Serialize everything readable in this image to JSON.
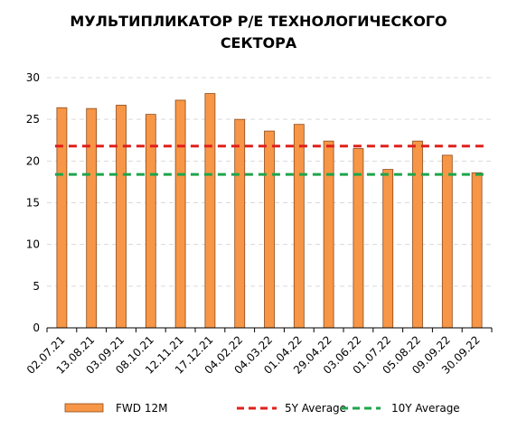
{
  "chart_data": {
    "type": "bar",
    "title_lines": [
      "МУЛЬТИПЛИКАТОР Р/Е ТЕХНОЛОГИЧЕСКОГО",
      "СЕКТОРА"
    ],
    "categories": [
      "02.07.21",
      "13.08.21",
      "03.09.21",
      "08.10.21",
      "12.11.21",
      "17.12.21",
      "04.02.22",
      "04.03.22",
      "01.04.22",
      "29.04.22",
      "03.06.22",
      "01.07.22",
      "05.08.22",
      "09.09.22",
      "30.09.22"
    ],
    "series": [
      {
        "name": "FWD 12M",
        "type": "bar",
        "color": "#F79646",
        "values": [
          26.4,
          26.3,
          26.7,
          25.6,
          27.3,
          28.1,
          25.0,
          23.6,
          24.4,
          22.4,
          21.5,
          19.0,
          22.4,
          20.7,
          18.6
        ]
      },
      {
        "name": "5Y Average",
        "type": "line",
        "style": "dashed",
        "color": "#E0201B",
        "value": 21.8
      },
      {
        "name": "10Y Average",
        "type": "line",
        "style": "dashed",
        "color": "#1CA54B",
        "value": 18.4
      }
    ],
    "y_ticks": [
      "0",
      "5",
      "10",
      "15",
      "20",
      "25",
      "30"
    ],
    "ylim": [
      0,
      30
    ],
    "grid": true,
    "legend": "bottom"
  }
}
